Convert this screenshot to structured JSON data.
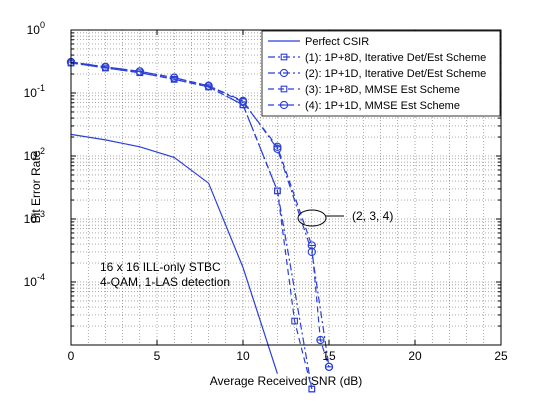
{
  "chart_data": {
    "type": "line",
    "xlabel": "Average Received SNR (dB)",
    "ylabel": "Bit Error Rate",
    "xlim": [
      0,
      25
    ],
    "ylim": [
      1e-05,
      1
    ],
    "xscale": "linear",
    "yscale": "log",
    "x_ticks": [
      "0",
      "5",
      "10",
      "15",
      "20",
      "25"
    ],
    "y_ticks": [
      "10^0",
      "10^-1",
      "10^-2",
      "10^-3",
      "10^-4"
    ],
    "grid": true,
    "legend_position": "top-right",
    "line_color": "#2b3fd9",
    "series": [
      {
        "name": "Perfect CSIR",
        "style": "solid",
        "marker": "none",
        "x": [
          0,
          2,
          4,
          6,
          8,
          10,
          12
        ],
        "y": [
          0.022,
          0.018,
          0.014,
          0.0095,
          0.0037,
          0.00017,
          3.5e-06
        ]
      },
      {
        "name": "(1): 1P+8D, Iterative Det/Est Scheme",
        "style": "dashdot",
        "marker": "square",
        "x": [
          0,
          2,
          4,
          6,
          8,
          10,
          12,
          14
        ],
        "y": [
          0.3,
          0.25,
          0.21,
          0.165,
          0.125,
          0.065,
          0.0028,
          2e-06
        ]
      },
      {
        "name": "(2): 1P+1D, Iterative Det/Est Scheme",
        "style": "dashdot",
        "marker": "circle",
        "x": [
          0,
          2,
          4,
          6,
          8,
          10,
          12,
          14,
          15
        ],
        "y": [
          0.31,
          0.26,
          0.22,
          0.175,
          0.13,
          0.075,
          0.013,
          0.0003,
          4.5e-06
        ]
      },
      {
        "name": "(3): 1P+8D, MMSE Est Scheme",
        "style": "dashed",
        "marker": "square",
        "x": [
          0,
          2,
          4,
          6,
          8,
          10,
          12,
          13,
          14
        ],
        "y": [
          0.3,
          0.25,
          0.21,
          0.165,
          0.125,
          0.065,
          0.0028,
          2.4e-05,
          2e-06
        ]
      },
      {
        "name": "(4): 1P+1D, MMSE Est Scheme",
        "style": "dashed",
        "marker": "circle-minus",
        "x": [
          0,
          2,
          4,
          6,
          8,
          10,
          12,
          14,
          14.5,
          15
        ],
        "y": [
          0.31,
          0.26,
          0.22,
          0.175,
          0.13,
          0.072,
          0.014,
          0.00038,
          1.2e-05,
          4.5e-06
        ]
      }
    ],
    "annotations": [
      {
        "text": "(2, 3, 4)",
        "x": 15.5,
        "y": 0.00065
      },
      {
        "text": "16 x 16 ILL-only STBC",
        "x": 0.2,
        "y": 0.00016
      },
      {
        "text": "4-QAM, 1-LAS detection",
        "x": 0.2,
        "y": 7.5e-05
      }
    ]
  }
}
